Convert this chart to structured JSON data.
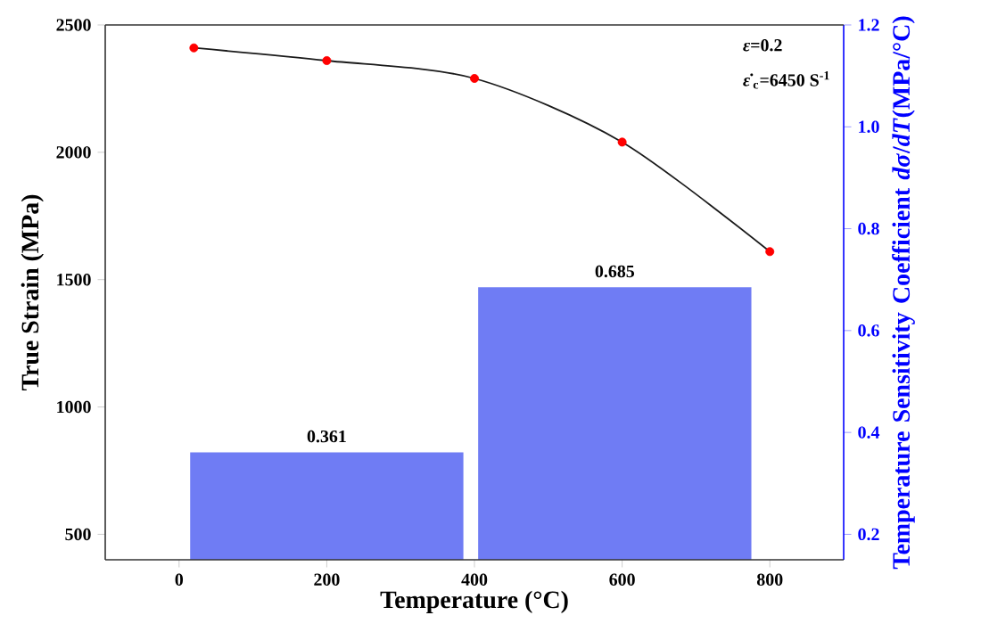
{
  "chart_data": {
    "type": "line",
    "xlabel": "Temperature (°C)",
    "ylabel": "True Strain (MPa)",
    "y2label": "Temperature Sensitivity Coefficient *dσ*/*dT*(MPa/°C)",
    "xlim": [
      -100,
      900
    ],
    "xticks": [
      0,
      200,
      400,
      600,
      800
    ],
    "ylim": [
      400,
      2500
    ],
    "yticks": [
      500,
      1000,
      1500,
      2000,
      2500
    ],
    "y2lim": [
      0.15,
      1.2
    ],
    "y2ticks": [
      {
        "value": 0.2,
        "label": "0.2"
      },
      {
        "value": 0.4,
        "label": "0.4"
      },
      {
        "value": 0.6,
        "label": "0.6"
      },
      {
        "value": 0.8,
        "label": "0.8"
      },
      {
        "value": 1.0,
        "label": "1.0"
      },
      {
        "value": 1.2,
        "label": "1.2"
      }
    ],
    "series": [
      {
        "type": "bar",
        "axis": "y2",
        "x": [
          200,
          590
        ],
        "values": [
          0.361,
          0.685
        ],
        "value_labels": [
          "0.361",
          "0.685"
        ],
        "color": "#6f7cf4"
      },
      {
        "x": [
          20,
          200,
          400,
          600,
          800
        ],
        "values": [
          2410,
          2360,
          2290,
          2040,
          1610
        ],
        "color": "#1a1a1a",
        "marker": "none",
        "line_style": "solid"
      },
      {
        "type": "scatter",
        "x": [
          20,
          200,
          400,
          600,
          800
        ],
        "values": [
          2410,
          2360,
          2290,
          2040,
          1610
        ],
        "color": "#ff0000",
        "marker": "circle"
      }
    ],
    "annotations": [
      "*ε*=0.2",
      "*ε̇*$_{c}$=6450 S$^{-1}$"
    ],
    "legend": false,
    "grid": false
  }
}
